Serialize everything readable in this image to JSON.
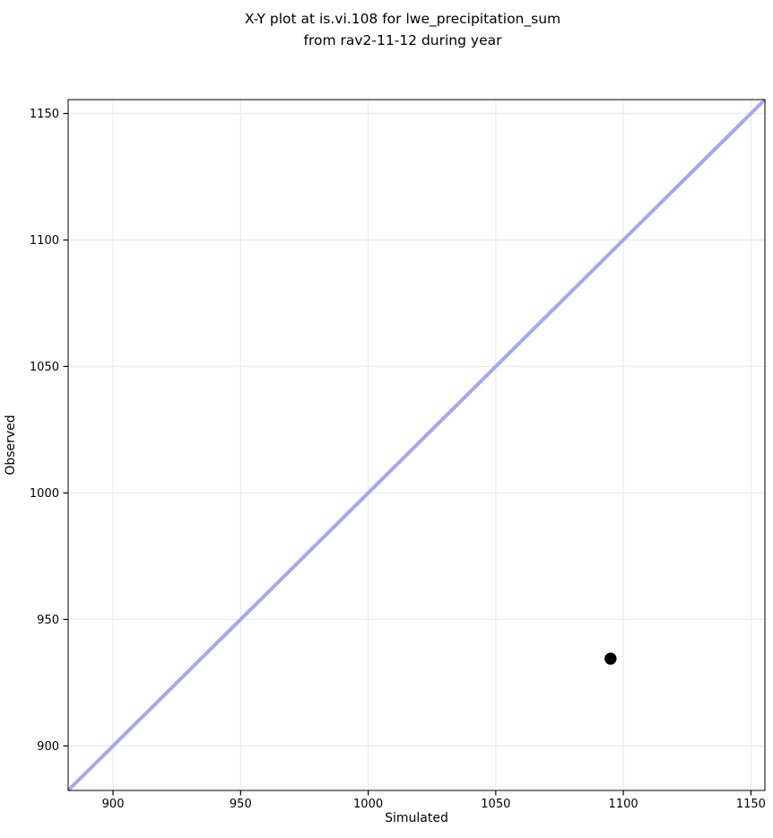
{
  "title": {
    "line1": "X-Y plot at is.vi.108 for lwe_precipitation_sum",
    "line2": "from rav2-11-12 during year"
  },
  "chart_data": {
    "type": "scatter",
    "title": "X-Y plot at is.vi.108 for lwe_precipitation_sum\nfrom rav2-11-12 during year",
    "xlabel": "Simulated",
    "ylabel": "Observed",
    "xlim": [
      882.4,
      1155.5
    ],
    "ylim": [
      882.4,
      1155.5
    ],
    "xticks": [
      900,
      950,
      1000,
      1050,
      1100,
      1150
    ],
    "yticks": [
      900,
      950,
      1000,
      1050,
      1100,
      1150
    ],
    "grid": true,
    "legend": "none",
    "series": [
      {
        "name": "identity-line",
        "type": "line",
        "color": "#a5a7f0",
        "line_width": 4,
        "points": [
          [
            882.4,
            882.4
          ],
          [
            1155.5,
            1155.5
          ]
        ]
      },
      {
        "name": "data-points",
        "type": "scatter",
        "color": "#000000",
        "marker_radius": 6.7,
        "points": [
          [
            1095,
            934.5
          ]
        ]
      }
    ],
    "colors": {
      "background": "#ffffff",
      "grid": "#ebebeb",
      "spine": "#000000",
      "tick": "#000000",
      "text": "#000000"
    }
  }
}
